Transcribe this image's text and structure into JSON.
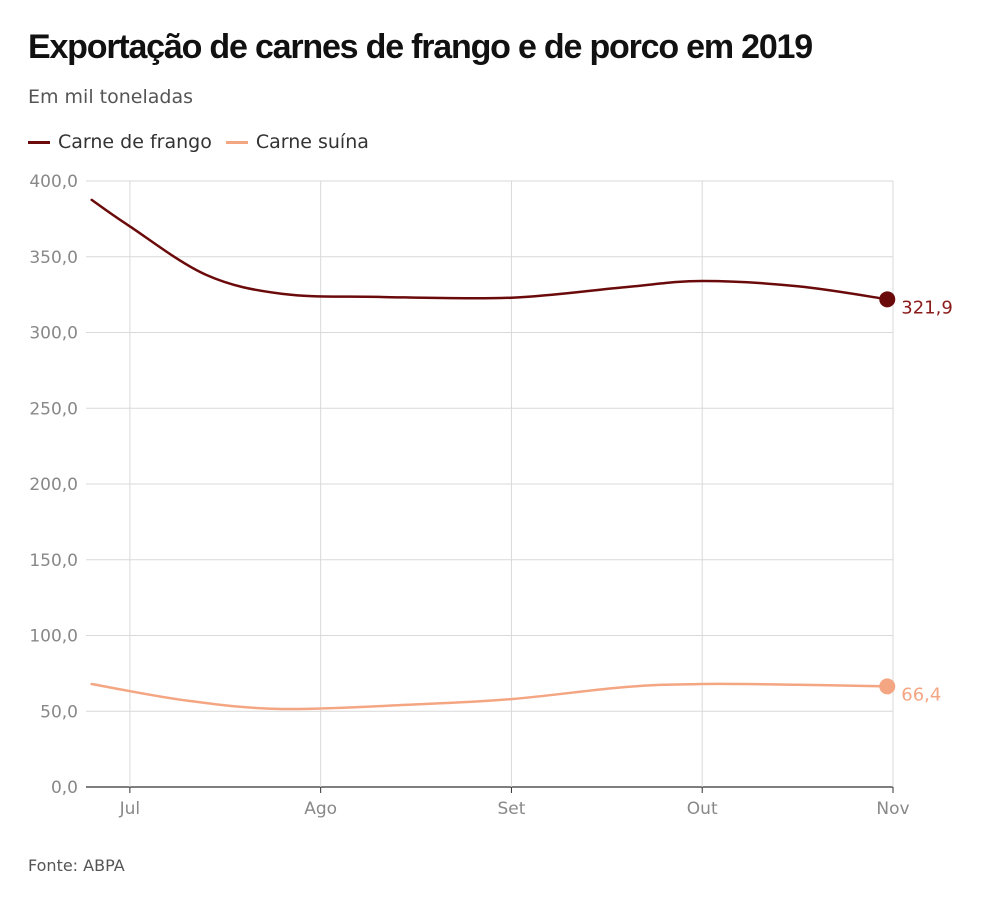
{
  "title": "Exportação de carnes de frango e de porco em 2019",
  "subtitle": "Em mil toneladas",
  "source": "Fonte: ABPA",
  "colors": {
    "frango": "#6b0a0a",
    "suina": "#f4a683",
    "grid": "#d9d9d9",
    "tick": "#888888",
    "frango_label": "#8b1a1a"
  },
  "chart_data": {
    "type": "line",
    "title": "Exportação de carnes de frango e de porco em 2019",
    "subtitle": "Em mil toneladas",
    "xlabel": "",
    "ylabel": "",
    "x_ticks": [
      "Jul",
      "Ago",
      "Set",
      "Out",
      "Nov"
    ],
    "y_ticks": [
      "0,0",
      "50,0",
      "100,0",
      "150,0",
      "200,0",
      "250,0",
      "300,0",
      "350,0",
      "400,0"
    ],
    "ylim": [
      0,
      400
    ],
    "x_range_months": [
      6.77,
      11.0
    ],
    "grid": true,
    "legend": "top-left",
    "series": [
      {
        "name": "Carne de frango",
        "color": "#6b0a0a",
        "points": [
          {
            "month": 6.8,
            "value": 387.5
          },
          {
            "month": 7.0,
            "value": 370.0
          },
          {
            "month": 7.4,
            "value": 338.0
          },
          {
            "month": 7.8,
            "value": 325.5
          },
          {
            "month": 8.3,
            "value": 323.5
          },
          {
            "month": 9.0,
            "value": 323.0
          },
          {
            "month": 9.6,
            "value": 330.0
          },
          {
            "month": 10.0,
            "value": 334.0
          },
          {
            "month": 10.5,
            "value": 330.5
          },
          {
            "month": 10.97,
            "value": 321.9
          }
        ],
        "end_label": "321,9"
      },
      {
        "name": "Carne suína",
        "color": "#f4a683",
        "points": [
          {
            "month": 6.8,
            "value": 68.0
          },
          {
            "month": 7.3,
            "value": 57.0
          },
          {
            "month": 7.8,
            "value": 51.5
          },
          {
            "month": 8.5,
            "value": 54.5
          },
          {
            "month": 9.0,
            "value": 58.0
          },
          {
            "month": 9.6,
            "value": 66.0
          },
          {
            "month": 10.0,
            "value": 68.0
          },
          {
            "month": 10.5,
            "value": 67.5
          },
          {
            "month": 10.97,
            "value": 66.4
          }
        ],
        "end_label": "66,4"
      }
    ]
  }
}
